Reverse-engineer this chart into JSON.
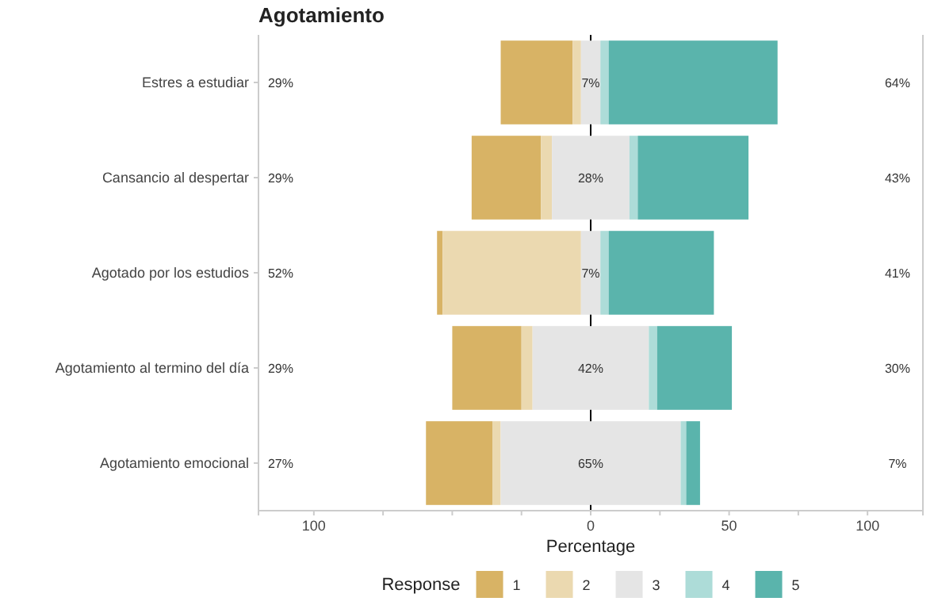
{
  "chart_data": {
    "type": "bar",
    "orientation": "horizontal",
    "title": "Agotamiento",
    "xlabel": "Percentage",
    "legend_title": "Response",
    "legend": "bottom",
    "grid": false,
    "categories": [
      "Estres a estudiar",
      "Cansancio al despertar",
      "Agotado por los estudios",
      "Agotamiento al termino del día",
      "Agotamiento emocional"
    ],
    "series": [
      {
        "name": "1",
        "color": "#d8b365",
        "values": [
          26,
          25,
          2,
          25,
          24
        ],
        "base": [
          -32.5,
          -43,
          -55.5,
          -50,
          -59.5
        ]
      },
      {
        "name": "2",
        "color": "#ebd9b0",
        "values": [
          3,
          4,
          50,
          4,
          3
        ],
        "base": [
          -6.5,
          -18,
          -53.5,
          -25,
          -35.5
        ]
      },
      {
        "name": "3",
        "color": "#e5e5e5",
        "values": [
          7,
          28,
          7,
          42,
          65
        ],
        "base": [
          -3.5,
          -14,
          -3.5,
          -21,
          -32.5
        ]
      },
      {
        "name": "4",
        "color": "#addcd8",
        "values": [
          3,
          3,
          3,
          3,
          2
        ],
        "base": [
          3.5,
          14,
          3.5,
          21,
          32.5
        ]
      },
      {
        "name": "5",
        "color": "#5ab4ac",
        "values": [
          61,
          40,
          38,
          27,
          5
        ],
        "base": [
          6.5,
          17,
          6.5,
          24,
          34.5
        ]
      }
    ],
    "xlim": [
      -120,
      120
    ],
    "xticks": [
      {
        "value": -100,
        "label": "100"
      },
      {
        "value": -75,
        "label": null
      },
      {
        "value": -50,
        "label": null
      },
      {
        "value": -25,
        "label": null
      },
      0,
      {
        "value": 25,
        "label": null
      },
      50,
      {
        "value": 75,
        "label": null
      },
      100
    ],
    "ref_lines": [
      {
        "axis": "x",
        "value": 0,
        "color": "#000000"
      }
    ],
    "annotations": [
      "29%",
      "7%",
      "64%",
      "29%",
      "28%",
      "43%",
      "52%",
      "7%",
      "41%",
      "29%",
      "42%",
      "30%",
      "27%",
      "65%",
      "7%"
    ]
  }
}
